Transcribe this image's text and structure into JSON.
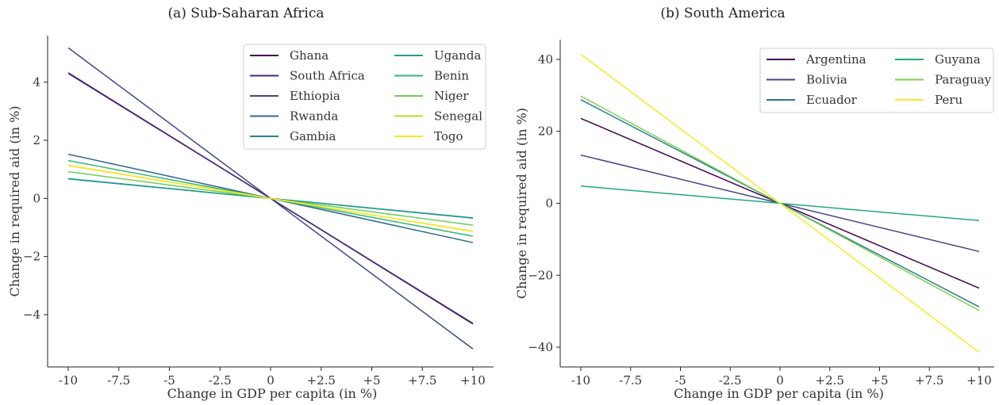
{
  "chart_data": [
    {
      "type": "line",
      "title": "(a) Sub-Saharan Africa",
      "xlabel": "Change in GDP per capita (in %)",
      "ylabel": "Change in required aid (in %)",
      "xlim": [
        -10,
        10
      ],
      "ylim": [
        -5.8,
        5.6
      ],
      "xticks": [
        -10,
        -7.5,
        -5,
        -2.5,
        0,
        2.5,
        5,
        7.5,
        10
      ],
      "xtick_labels": [
        "-10",
        "-7.5",
        "-5",
        "-2.5",
        "0",
        "+2.5",
        "+5",
        "+7.5",
        "+10"
      ],
      "yticks": [
        -4,
        -2,
        0,
        2,
        4
      ],
      "ytick_labels": [
        "−4",
        "−2",
        "0",
        "2",
        "4"
      ],
      "legend_position": "top-right",
      "legend_columns": 2,
      "series": [
        {
          "name": "Ghana",
          "color": "#440154",
          "x": [
            -10,
            10
          ],
          "y": [
            4.32,
            -4.32
          ]
        },
        {
          "name": "South Africa",
          "color": "#482878",
          "x": [
            -10,
            10
          ],
          "y": [
            4.3,
            -4.3
          ]
        },
        {
          "name": "Ethiopia",
          "color": "#3e4989",
          "x": [
            -10,
            10
          ],
          "y": [
            5.18,
            -5.18
          ]
        },
        {
          "name": "Rwanda",
          "color": "#31688e",
          "x": [
            -10,
            10
          ],
          "y": [
            1.52,
            -1.52
          ]
        },
        {
          "name": "Gambia",
          "color": "#26828e",
          "x": [
            -10,
            10
          ],
          "y": [
            0.68,
            -0.68
          ]
        },
        {
          "name": "Uganda",
          "color": "#1f9e89",
          "x": [
            -10,
            10
          ],
          "y": [
            0.67,
            -0.67
          ]
        },
        {
          "name": "Benin",
          "color": "#35b779",
          "x": [
            -10,
            10
          ],
          "y": [
            1.3,
            -1.3
          ]
        },
        {
          "name": "Niger",
          "color": "#6ece58",
          "x": [
            -10,
            10
          ],
          "y": [
            0.92,
            -0.92
          ]
        },
        {
          "name": "Senegal",
          "color": "#b5de2b",
          "x": [
            -10,
            10
          ],
          "y": [
            1.13,
            -1.13
          ]
        },
        {
          "name": "Togo",
          "color": "#fde725",
          "x": [
            -10,
            10
          ],
          "y": [
            1.14,
            -1.14
          ]
        }
      ]
    },
    {
      "type": "line",
      "title": "(b) South America",
      "xlabel": "Change in GDP per capita (in %)",
      "ylabel": "Change in required aid (in %)",
      "xlim": [
        -10,
        10
      ],
      "ylim": [
        -45.5,
        45.5
      ],
      "xticks": [
        -10,
        -7.5,
        -5,
        -2.5,
        0,
        2.5,
        5,
        7.5,
        10
      ],
      "xtick_labels": [
        "-10",
        "-7.5",
        "-5",
        "-2.5",
        "0",
        "+2.5",
        "+5",
        "+7.5",
        "+10"
      ],
      "yticks": [
        -40,
        -20,
        0,
        20,
        40
      ],
      "ytick_labels": [
        "−40",
        "−20",
        "0",
        "20",
        "40"
      ],
      "legend_position": "top-right",
      "legend_columns": 2,
      "series": [
        {
          "name": "Argentina",
          "color": "#440154",
          "x": [
            -10,
            10
          ],
          "y": [
            23.6,
            -23.6
          ]
        },
        {
          "name": "Bolivia",
          "color": "#414487",
          "x": [
            -10,
            10
          ],
          "y": [
            13.4,
            -13.4
          ]
        },
        {
          "name": "Ecuador",
          "color": "#2a788e",
          "x": [
            -10,
            10
          ],
          "y": [
            28.8,
            -28.8
          ]
        },
        {
          "name": "Guyana",
          "color": "#22a884",
          "x": [
            -10,
            10
          ],
          "y": [
            4.8,
            -4.8
          ]
        },
        {
          "name": "Paraguay",
          "color": "#7ad151",
          "x": [
            -10,
            10
          ],
          "y": [
            29.8,
            -29.8
          ]
        },
        {
          "name": "Peru",
          "color": "#fde725",
          "x": [
            -10,
            10
          ],
          "y": [
            41.4,
            -41.4
          ]
        }
      ]
    }
  ]
}
